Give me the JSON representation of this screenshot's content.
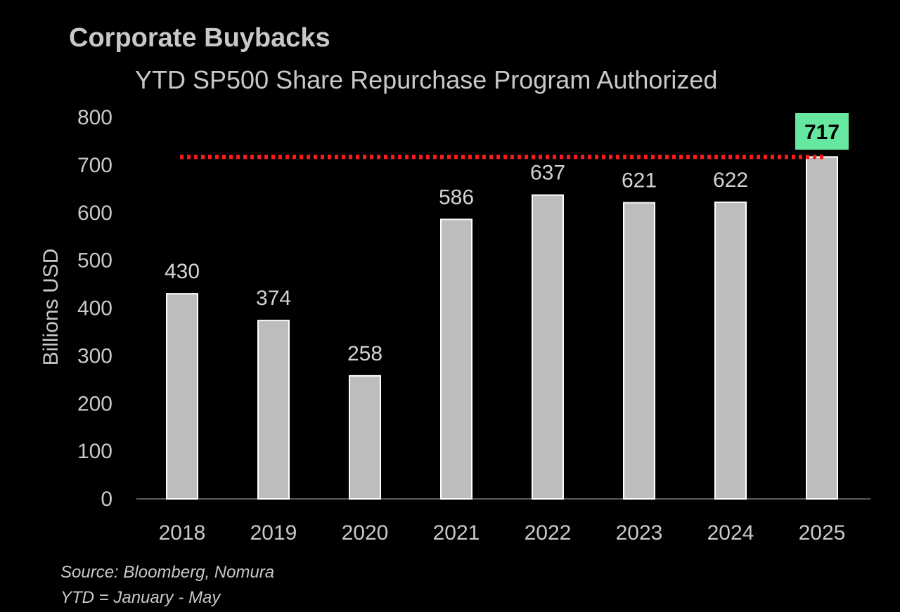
{
  "chart_data": {
    "type": "bar",
    "title": "Corporate Buybacks",
    "subtitle": "YTD SP500 Share Repurchase Program Authorized",
    "categories": [
      "2018",
      "2019",
      "2020",
      "2021",
      "2022",
      "2023",
      "2024",
      "2025"
    ],
    "values": [
      430,
      374,
      258,
      586,
      637,
      621,
      622,
      717
    ],
    "data_labels": [
      "430",
      "374",
      "258",
      "586",
      "637",
      "621",
      "622",
      "717"
    ],
    "xlabel": "",
    "ylabel": "Billions USD",
    "ylim": [
      0,
      800
    ],
    "yticks": [
      0,
      100,
      200,
      300,
      400,
      500,
      600,
      700,
      800
    ],
    "ytick_labels": [
      "0",
      "100",
      "200",
      "300",
      "400",
      "500",
      "600",
      "700",
      "800"
    ],
    "grid": false,
    "reference_line": {
      "value": 717,
      "style": "dotted",
      "color": "#ff1a1a"
    },
    "highlight": {
      "category": "2025",
      "label": "717",
      "color": "#66e8a0"
    },
    "bar_color": "#bdbdbd",
    "footnotes": [
      "Source: Bloomberg, Nomura",
      "YTD = January - May"
    ]
  }
}
